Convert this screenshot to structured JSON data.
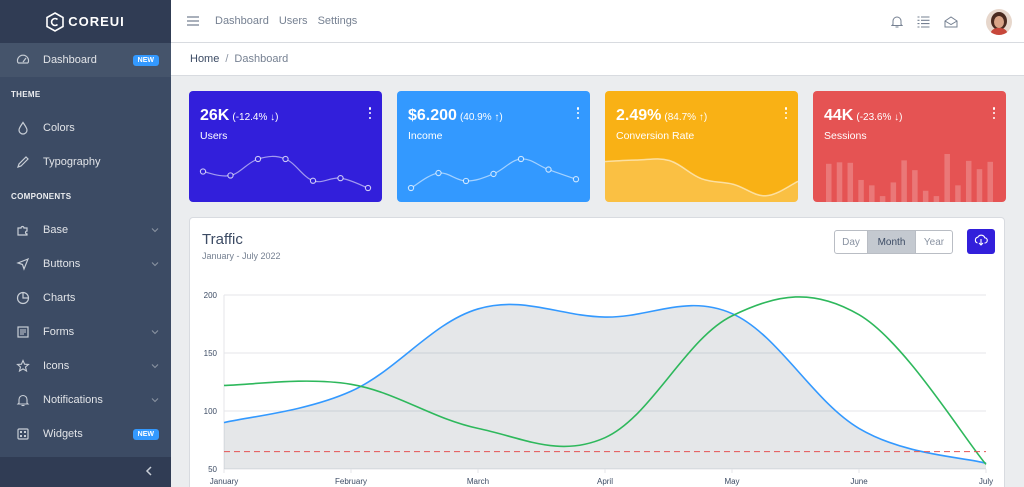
{
  "brand": {
    "name": "COREUI"
  },
  "sidebar": {
    "items": [
      {
        "type": "item",
        "label": "Dashboard",
        "icon": "speedometer-icon",
        "badge": "NEW",
        "active": true
      },
      {
        "type": "title",
        "label": "THEME"
      },
      {
        "type": "item",
        "label": "Colors",
        "icon": "drop-icon"
      },
      {
        "type": "item",
        "label": "Typography",
        "icon": "pencil-icon"
      },
      {
        "type": "title",
        "label": "COMPONENTS"
      },
      {
        "type": "item",
        "label": "Base",
        "icon": "puzzle-icon",
        "dropdown": true
      },
      {
        "type": "item",
        "label": "Buttons",
        "icon": "cursor-icon",
        "dropdown": true
      },
      {
        "type": "item",
        "label": "Charts",
        "icon": "chart-pie-icon"
      },
      {
        "type": "item",
        "label": "Forms",
        "icon": "notes-icon",
        "dropdown": true
      },
      {
        "type": "item",
        "label": "Icons",
        "icon": "star-icon",
        "dropdown": true
      },
      {
        "type": "item",
        "label": "Notifications",
        "icon": "bell-icon",
        "dropdown": true
      },
      {
        "type": "item",
        "label": "Widgets",
        "icon": "calculator-icon",
        "badge": "NEW"
      }
    ]
  },
  "header": {
    "links": [
      "Dashboard",
      "Users",
      "Settings"
    ],
    "icons": [
      "bell-icon",
      "list-icon",
      "envelope-icon"
    ]
  },
  "breadcrumb": {
    "home": "Home",
    "separator": "/",
    "current": "Dashboard"
  },
  "widgets": [
    {
      "value": "26K",
      "change": "(-12.4% ↓)",
      "label": "Users",
      "color": "#321fdb",
      "chart": {
        "type": "line",
        "values": [
          65,
          59,
          84,
          84,
          51,
          55,
          40
        ]
      }
    },
    {
      "value": "$6.200",
      "change": "(40.9% ↑)",
      "label": "Income",
      "color": "#39f",
      "chart": {
        "type": "line",
        "values": [
          1,
          18,
          9,
          17,
          34,
          22,
          11
        ]
      }
    },
    {
      "value": "2.49%",
      "change": "(84.7% ↑)",
      "label": "Conversion Rate",
      "color": "#f9b115",
      "chart": {
        "type": "area",
        "values": [
          78,
          81,
          80,
          45,
          34,
          12,
          40
        ]
      }
    },
    {
      "value": "44K",
      "change": "(-23.6% ↓)",
      "label": "Sessions",
      "color": "#e55353",
      "chart": {
        "type": "bar",
        "values": [
          78,
          81,
          80,
          45,
          34,
          12,
          40,
          85,
          65,
          23,
          12,
          98,
          34,
          84,
          67,
          82
        ]
      }
    }
  ],
  "traffic": {
    "title": "Traffic",
    "subtitle": "January - July 2022",
    "periods": [
      "Day",
      "Month",
      "Year"
    ],
    "selected_period": "Month",
    "download_icon": "cloud-download-icon"
  },
  "chart_data": {
    "type": "line",
    "categories": [
      "January",
      "February",
      "March",
      "April",
      "May",
      "June",
      "July"
    ],
    "ylim": [
      50,
      200
    ],
    "yticks": [
      50,
      100,
      150,
      200
    ],
    "grid": true,
    "series": [
      {
        "color": "#39f",
        "fill": "rgba(0,21,38,0.1)",
        "values": [
          90,
          117,
          188,
          181,
          184,
          85,
          55
        ]
      },
      {
        "color": "#2eb85c",
        "values": [
          122,
          123,
          85,
          77,
          182,
          183,
          54
        ]
      },
      {
        "color": "#e55353",
        "dashed": true,
        "values": [
          65,
          65,
          65,
          65,
          65,
          65,
          65
        ]
      }
    ]
  }
}
